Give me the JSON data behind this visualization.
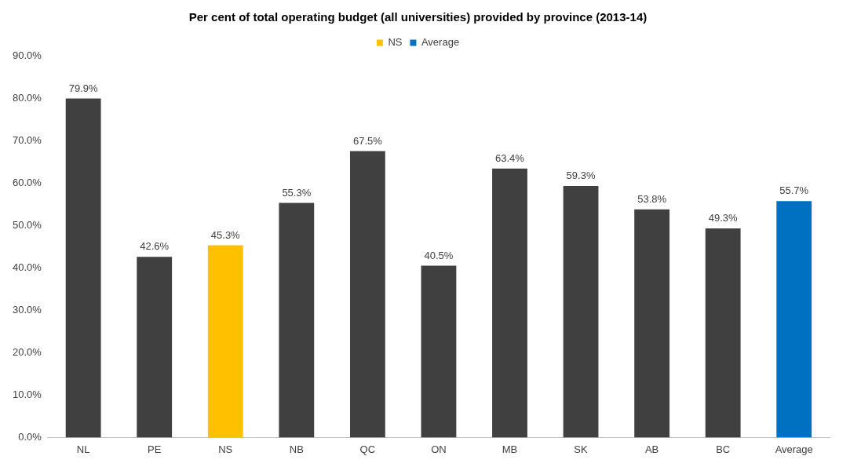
{
  "chart_data": {
    "type": "bar",
    "title": "Per cent of total operating budget (all universities) provided by province (2013-14)",
    "categories": [
      "NL",
      "PE",
      "NS",
      "NB",
      "QC",
      "ON",
      "MB",
      "SK",
      "AB",
      "BC",
      "Average"
    ],
    "series": [
      {
        "color": "#404040",
        "values": [
          79.9,
          42.6,
          null,
          55.3,
          67.5,
          40.5,
          63.4,
          59.3,
          53.8,
          49.3,
          null
        ],
        "value_labels": [
          "79.9%",
          "42.6%",
          null,
          "55.3%",
          "67.5%",
          "40.5%",
          "63.4%",
          "59.3%",
          "53.8%",
          "49.3%",
          null
        ]
      },
      {
        "name": "NS",
        "color": "#ffc000",
        "values": [
          null,
          null,
          45.3,
          null,
          null,
          null,
          null,
          null,
          null,
          null,
          null
        ],
        "value_labels": [
          null,
          null,
          "45.3%",
          null,
          null,
          null,
          null,
          null,
          null,
          null,
          null
        ]
      },
      {
        "name": "Average",
        "color": "#0070c0",
        "values": [
          null,
          null,
          null,
          null,
          null,
          null,
          null,
          null,
          null,
          null,
          55.7
        ],
        "value_labels": [
          null,
          null,
          null,
          null,
          null,
          null,
          null,
          null,
          null,
          null,
          "55.7%"
        ]
      }
    ],
    "ylim": [
      0,
      90
    ],
    "yticks": [
      {
        "value": 0,
        "label": "0.0%"
      },
      {
        "value": 10,
        "label": "10.0%"
      },
      {
        "value": 20,
        "label": "20.0%"
      },
      {
        "value": 30,
        "label": "30.0%"
      },
      {
        "value": 40,
        "label": "40.0%"
      },
      {
        "value": 50,
        "label": "50.0%"
      },
      {
        "value": 60,
        "label": "60.0%"
      },
      {
        "value": 70,
        "label": "70.0%"
      },
      {
        "value": 80,
        "label": "80.0%"
      },
      {
        "value": 90,
        "label": "90.0%"
      }
    ],
    "grid": false,
    "legend": "top"
  }
}
